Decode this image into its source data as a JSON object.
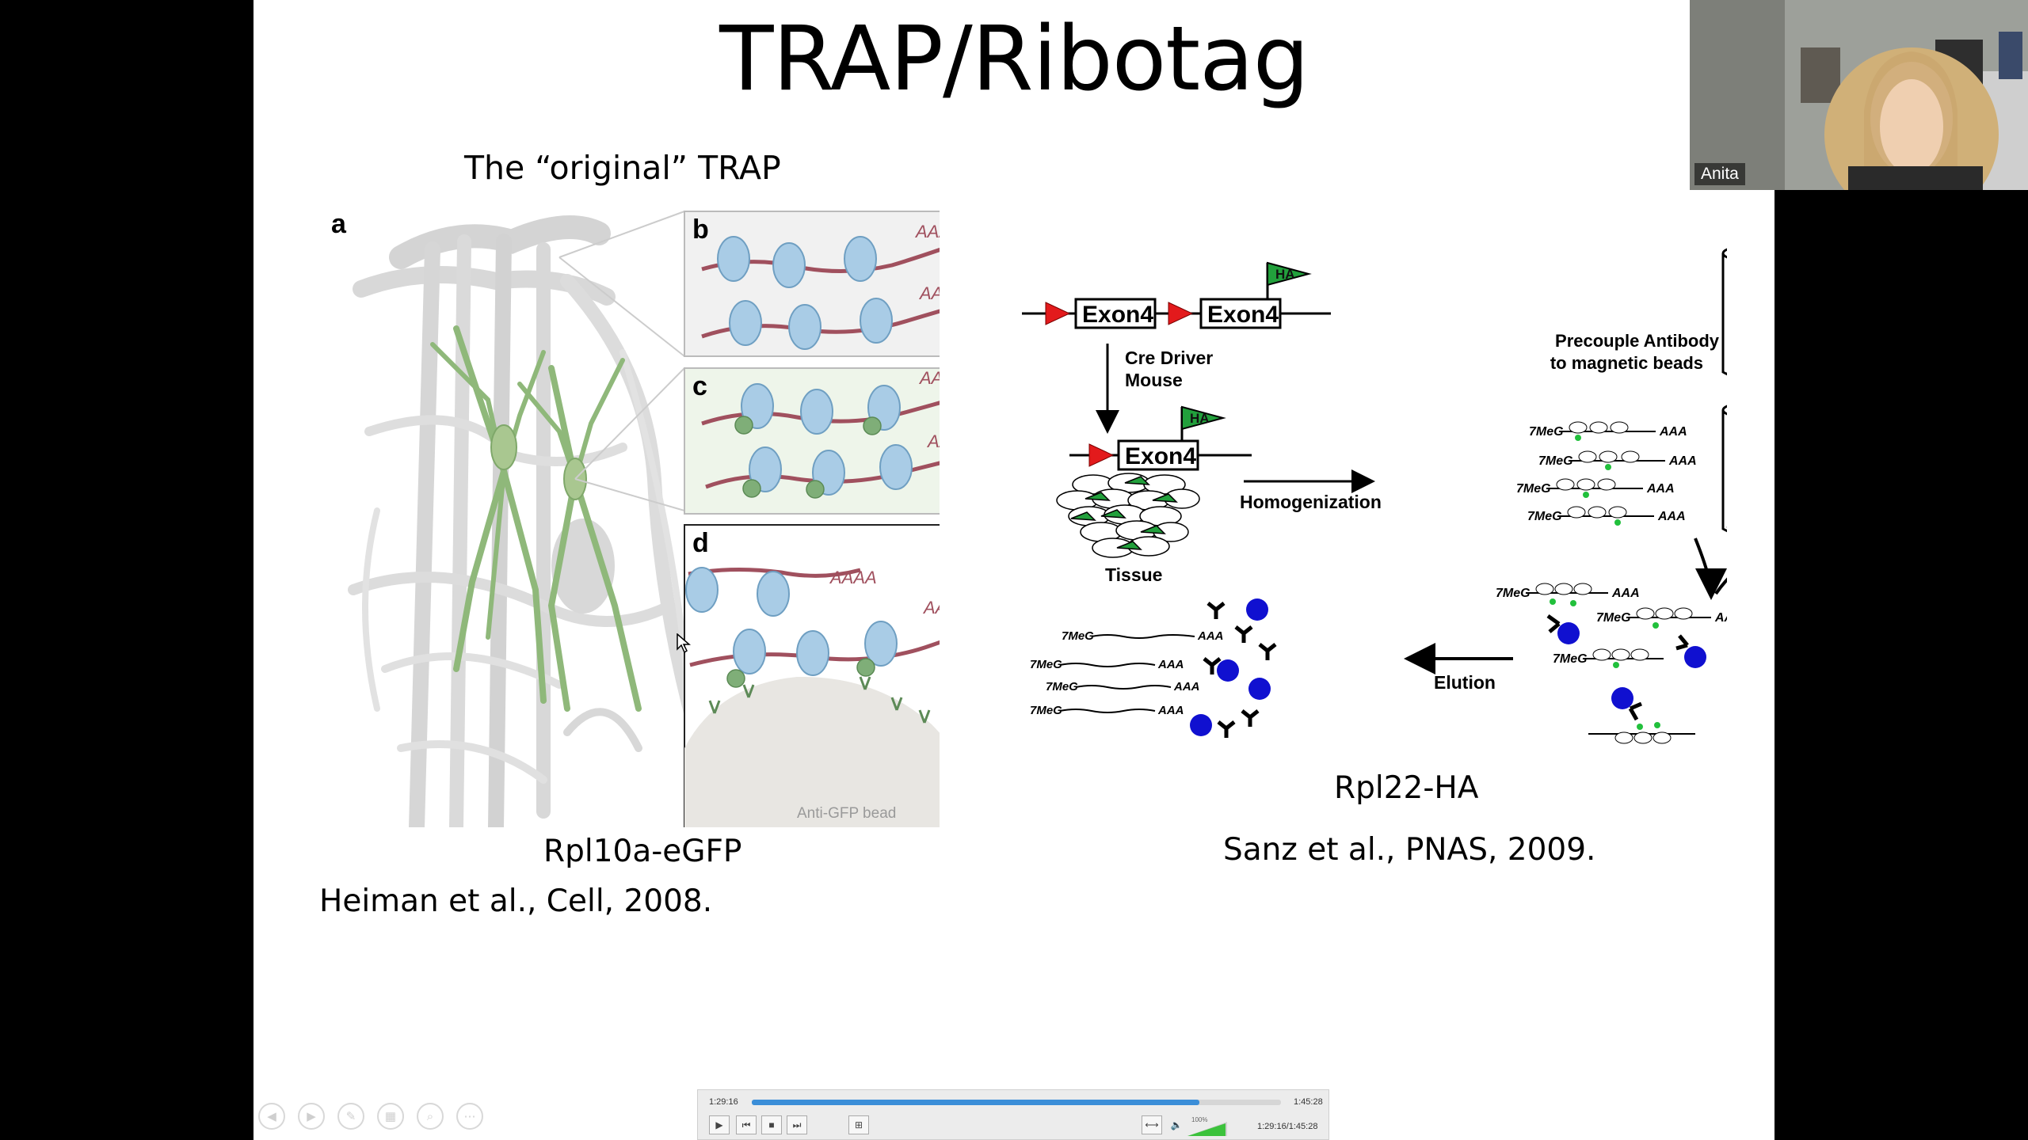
{
  "slide": {
    "title": "TRAP/Ribotag",
    "left_heading": "The “original” TRAP",
    "left_caption": "Rpl10a-eGFP",
    "left_citation": "Heiman et al., Cell, 2008.",
    "right_caption": "Rpl22-HA",
    "right_citation": "Sanz et al., PNAS, 2009."
  },
  "left_figure": {
    "panel_a": "a",
    "panel_b": "b",
    "panel_c": "c",
    "panel_d": "d",
    "polyA": "AAAA",
    "bead_label": "Anti-GFP bead",
    "colors": {
      "ribosome": "#a9cce6",
      "mrna": "#a0505e",
      "gfp": "#7fae78",
      "neuron": "#8fb87a"
    }
  },
  "right_figure": {
    "exon": "Exon4",
    "tag": "HA",
    "cre_line1": "Cre Driver",
    "cre_line2": "Mouse",
    "tissue": "Tissue",
    "homogenization": "Homogenization",
    "precouple_line1": "Precouple Antibody",
    "precouple_line2": "to magnetic beads",
    "elution": "Elution",
    "cap": "7MeG",
    "polyA": "AAA",
    "colors": {
      "loxp": "#e31a1c",
      "ha_flag": "#22a03c",
      "bead": "#1010d0"
    }
  },
  "webcam": {
    "name": "Anita"
  },
  "player": {
    "elapsed": "1:29:16",
    "total": "1:45:28",
    "combined": "1:29:16/1:45:28",
    "progress_fraction": 0.846,
    "volume_label": "100%",
    "play_icon": "play-icon",
    "prev_icon": "skip-back-icon",
    "stop_icon": "stop-icon",
    "next_icon": "skip-forward-icon",
    "fit_icon": "fit-screen-icon",
    "expand_icon": "expand-icon",
    "speaker_icon": "speaker-icon"
  },
  "slide_nav": [
    "back-icon",
    "forward-icon",
    "pen-icon",
    "slides-icon",
    "zoom-icon",
    "more-icon"
  ]
}
